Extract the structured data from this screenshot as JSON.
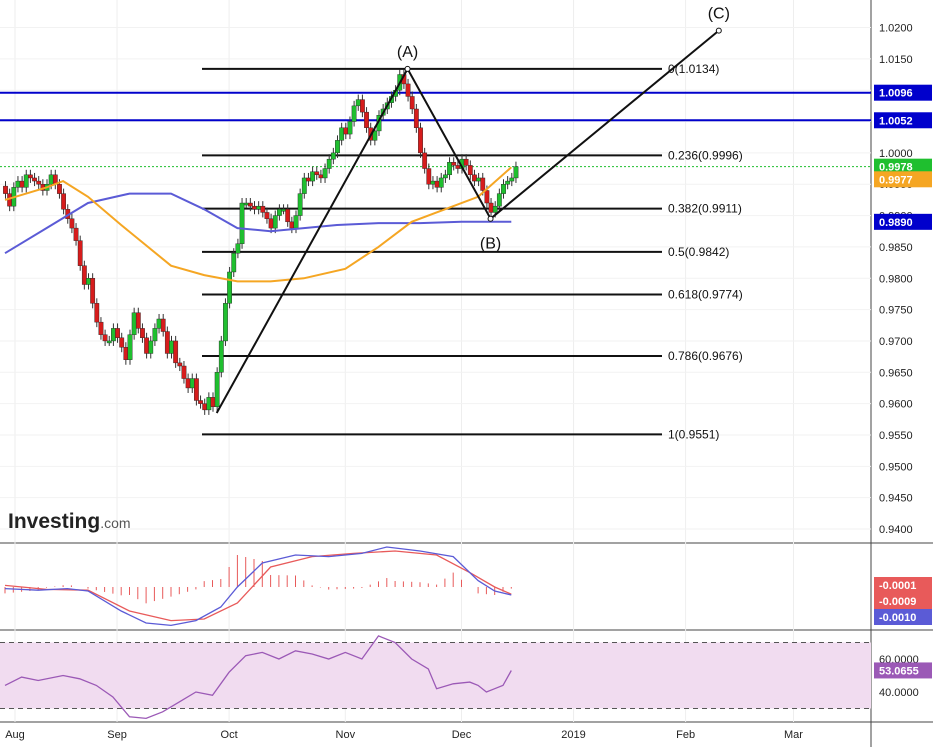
{
  "brand": {
    "name": "Investing",
    "suffix": ".com"
  },
  "colors": {
    "up": "#1fbf2f",
    "down": "#d61c1c",
    "wick": "#333333",
    "ma_fast": "#f5a623",
    "ma_slow": "#5b5bd6",
    "blue_level": "#0000cc",
    "macd": "#5b5bd6",
    "signal": "#e85a5a",
    "rsi": "#9b59b6",
    "rsi_band": "#f1dcf0"
  },
  "chart_data": [
    {
      "type": "candlestick",
      "panel": "price",
      "x_labels": [
        "Aug",
        "Sep",
        "Oct",
        "Nov",
        "Dec",
        "2019",
        "Feb",
        "Mar"
      ],
      "y_ticks": [
        "1.0200",
        "1.0150",
        "1.0100",
        "1.0050",
        "1.0000",
        "0.9950",
        "0.9900",
        "0.9850",
        "0.9800",
        "0.9750",
        "0.9700",
        "0.9650",
        "0.9600",
        "0.9550",
        "0.9500",
        "0.9450",
        "0.9400"
      ],
      "ylim": [
        0.9385,
        1.028
      ],
      "price_tags": [
        {
          "label": "1.0096",
          "value": 1.0096,
          "color": "#0000cc"
        },
        {
          "label": "1.0052",
          "value": 1.0052,
          "color": "#0000cc"
        },
        {
          "label": "0.9978",
          "value": 0.9978,
          "color": "#1fbf2f"
        },
        {
          "label": "0.9977",
          "value": 0.9977,
          "color": "#f5a623"
        },
        {
          "label": "0.9890",
          "value": 0.989,
          "color": "#0000cc"
        }
      ],
      "fib_levels": [
        {
          "label": "0(1.0134)",
          "value": 1.0134
        },
        {
          "label": "0.236(0.9996)",
          "value": 0.9996
        },
        {
          "label": "0.382(0.9911)",
          "value": 0.9911
        },
        {
          "label": "0.5(0.9842)",
          "value": 0.9842
        },
        {
          "label": "0.618(0.9774)",
          "value": 0.9774
        },
        {
          "label": "0.786(0.9676)",
          "value": 0.9676
        },
        {
          "label": "1(0.9551)",
          "value": 0.9551
        }
      ],
      "horizontal_levels": [
        1.0096,
        1.0052
      ],
      "wave_labels": [
        "(A)",
        "(B)",
        "(C)"
      ],
      "wave_points": [
        {
          "name": "start",
          "day": 51,
          "value": 0.9585
        },
        {
          "name": "(A)",
          "day": 97,
          "value": 1.0134
        },
        {
          "name": "(B)",
          "day": 117,
          "value": 0.9895
        },
        {
          "name": "(C)",
          "day": 172,
          "value": 1.0195
        }
      ],
      "close_series": [
        0.9935,
        0.9915,
        0.9945,
        0.9955,
        0.9945,
        0.9965,
        0.996,
        0.9955,
        0.995,
        0.994,
        0.995,
        0.9965,
        0.995,
        0.9935,
        0.991,
        0.9895,
        0.988,
        0.986,
        0.982,
        0.979,
        0.98,
        0.976,
        0.973,
        0.971,
        0.97,
        0.97,
        0.972,
        0.9705,
        0.969,
        0.967,
        0.971,
        0.9745,
        0.972,
        0.9705,
        0.968,
        0.97,
        0.972,
        0.9735,
        0.9715,
        0.968,
        0.97,
        0.9665,
        0.966,
        0.964,
        0.9625,
        0.964,
        0.9605,
        0.96,
        0.959,
        0.961,
        0.9595,
        0.965,
        0.97,
        0.976,
        0.981,
        0.984,
        0.9855,
        0.992,
        0.992,
        0.9915,
        0.991,
        0.9915,
        0.9905,
        0.9895,
        0.988,
        0.99,
        0.991,
        0.991,
        0.989,
        0.988,
        0.99,
        0.9935,
        0.996,
        0.9955,
        0.997,
        0.9965,
        0.996,
        0.9975,
        0.999,
        1.0,
        1.002,
        1.004,
        1.003,
        1.005,
        1.0075,
        1.0085,
        1.0065,
        1.004,
        1.002,
        1.0035,
        1.006,
        1.007,
        1.008,
        1.009,
        1.01,
        1.0125,
        1.011,
        1.009,
        1.007,
        1.004,
        1.0,
        0.9975,
        0.995,
        0.9955,
        0.9945,
        0.996,
        0.9965,
        0.9985,
        0.998,
        0.9975,
        0.999,
        0.998,
        0.9965,
        0.9955,
        0.996,
        0.994,
        0.992,
        0.9905,
        0.9915,
        0.9935,
        0.995,
        0.9955,
        0.996,
        0.9978
      ],
      "ma_fast": [
        [
          0,
          0.9925
        ],
        [
          10,
          0.9945
        ],
        [
          14,
          0.9955
        ],
        [
          20,
          0.993
        ],
        [
          28,
          0.9885
        ],
        [
          40,
          0.982
        ],
        [
          48,
          0.9805
        ],
        [
          56,
          0.9795
        ],
        [
          64,
          0.9795
        ],
        [
          72,
          0.98
        ],
        [
          82,
          0.9815
        ],
        [
          90,
          0.985
        ],
        [
          98,
          0.989
        ],
        [
          106,
          0.991
        ],
        [
          114,
          0.993
        ],
        [
          122,
          0.9977
        ]
      ],
      "ma_slow": [
        [
          0,
          0.984
        ],
        [
          10,
          0.988
        ],
        [
          20,
          0.992
        ],
        [
          30,
          0.9935
        ],
        [
          40,
          0.9935
        ],
        [
          48,
          0.991
        ],
        [
          56,
          0.988
        ],
        [
          64,
          0.9875
        ],
        [
          72,
          0.988
        ],
        [
          80,
          0.9885
        ],
        [
          90,
          0.9888
        ],
        [
          100,
          0.9888
        ],
        [
          110,
          0.989
        ],
        [
          122,
          0.989
        ]
      ]
    },
    {
      "type": "macd",
      "panel": "macd",
      "tags": [
        {
          "label": "-0.0001",
          "value": -0.0001,
          "color": "#e85a5a"
        },
        {
          "label": "-0.0009",
          "value": -0.0009,
          "color": "#e85a5a"
        },
        {
          "label": "-0.0010",
          "value": -0.001,
          "color": "#5b5bd6"
        }
      ],
      "ylim": [
        -0.006,
        0.006
      ],
      "macd_line": [
        [
          0,
          -0.0002
        ],
        [
          8,
          -0.0004
        ],
        [
          15,
          -0.0002
        ],
        [
          20,
          -0.0005
        ],
        [
          28,
          -0.003
        ],
        [
          34,
          -0.0045
        ],
        [
          40,
          -0.0048
        ],
        [
          46,
          -0.0042
        ],
        [
          52,
          -0.0025
        ],
        [
          56,
          0.0
        ],
        [
          62,
          0.003
        ],
        [
          70,
          0.004
        ],
        [
          78,
          0.0038
        ],
        [
          86,
          0.0042
        ],
        [
          92,
          0.005
        ],
        [
          100,
          0.0045
        ],
        [
          108,
          0.0038
        ],
        [
          114,
          0.0008
        ],
        [
          118,
          -0.0005
        ],
        [
          122,
          -0.001
        ]
      ],
      "signal_line": [
        [
          0,
          0.0002
        ],
        [
          10,
          -0.0003
        ],
        [
          20,
          -0.0004
        ],
        [
          30,
          -0.003
        ],
        [
          40,
          -0.0042
        ],
        [
          48,
          -0.004
        ],
        [
          56,
          -0.002
        ],
        [
          64,
          0.0025
        ],
        [
          74,
          0.0038
        ],
        [
          84,
          0.0042
        ],
        [
          94,
          0.0045
        ],
        [
          104,
          0.004
        ],
        [
          112,
          0.0018
        ],
        [
          118,
          0.0
        ],
        [
          122,
          -0.0009
        ]
      ]
    },
    {
      "type": "rsi",
      "panel": "rsi",
      "y_ticks": [
        "60.0000",
        "40.0000"
      ],
      "current_label": "53.0655",
      "current_value": 53.0655,
      "ylim": [
        15,
        85
      ],
      "bands": [
        70,
        30
      ],
      "values": [
        [
          0,
          44
        ],
        [
          4,
          49
        ],
        [
          8,
          47
        ],
        [
          14,
          50
        ],
        [
          18,
          48
        ],
        [
          22,
          44
        ],
        [
          26,
          37
        ],
        [
          30,
          25
        ],
        [
          34,
          24
        ],
        [
          38,
          28
        ],
        [
          42,
          34
        ],
        [
          46,
          40
        ],
        [
          50,
          38
        ],
        [
          54,
          52
        ],
        [
          58,
          62
        ],
        [
          62,
          64
        ],
        [
          66,
          60
        ],
        [
          70,
          65
        ],
        [
          74,
          63
        ],
        [
          78,
          60
        ],
        [
          82,
          64
        ],
        [
          86,
          60
        ],
        [
          90,
          74
        ],
        [
          94,
          70
        ],
        [
          98,
          60
        ],
        [
          102,
          54
        ],
        [
          104,
          42
        ],
        [
          108,
          45
        ],
        [
          112,
          46
        ],
        [
          114,
          44
        ],
        [
          116,
          40
        ],
        [
          118,
          42
        ],
        [
          120,
          44
        ],
        [
          122,
          53
        ]
      ]
    }
  ]
}
